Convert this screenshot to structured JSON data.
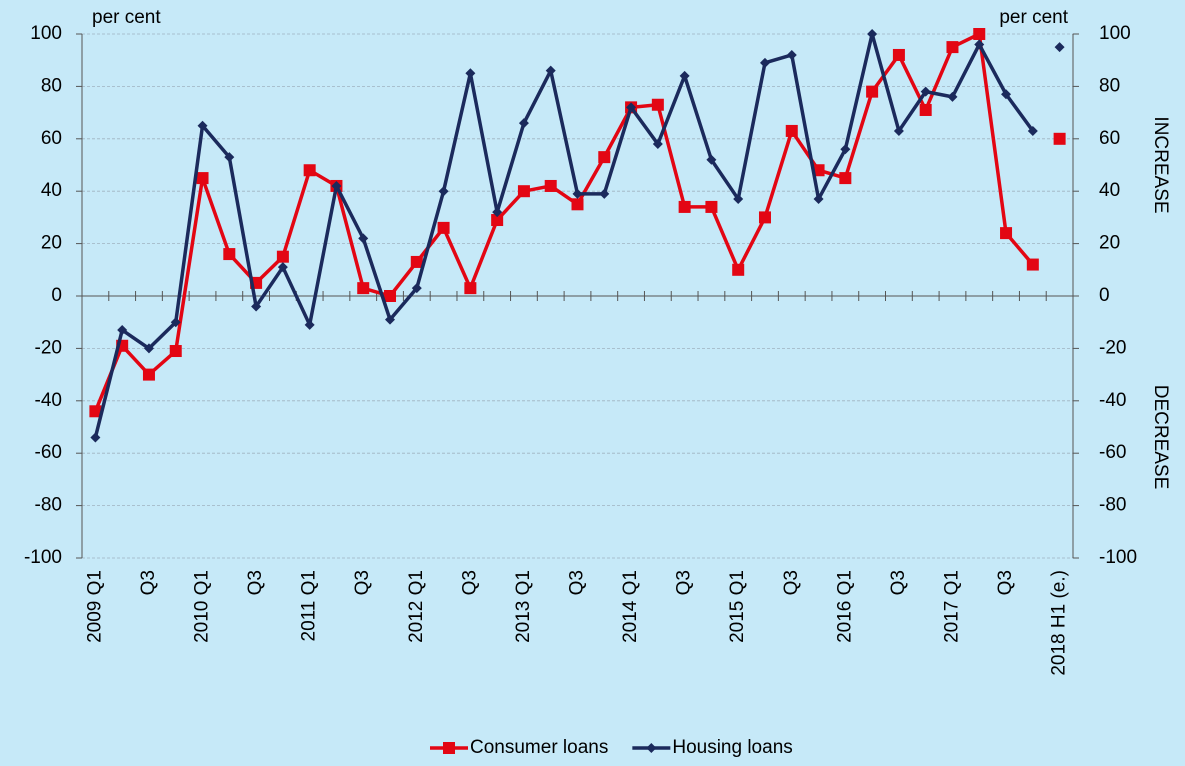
{
  "chart_data": {
    "type": "line",
    "y_unit_label": "per cent",
    "y2_unit_label": "per cent",
    "upper_note": "INCREASE",
    "lower_note": "DECREASE",
    "categories": [
      "2009 Q1",
      null,
      "Q3",
      null,
      "2010 Q1",
      null,
      "Q3",
      null,
      "2011 Q1",
      null,
      "Q3",
      null,
      "2012 Q1",
      null,
      "Q3",
      null,
      "2013 Q1",
      null,
      "Q3",
      null,
      "2014 Q1",
      null,
      "Q3",
      null,
      "2015 Q1",
      null,
      "Q3",
      null,
      "2016 Q1",
      null,
      "Q3",
      null,
      "2017 Q1",
      null,
      "Q3",
      null,
      "2018 H1 (e.)"
    ],
    "series": [
      {
        "name": "Consumer loans",
        "color": "#e30613",
        "marker": "square",
        "values": [
          -44,
          -19,
          -30,
          -21,
          45,
          16,
          5,
          15,
          48,
          42,
          3,
          0,
          13,
          26,
          3,
          29,
          40,
          42,
          35,
          53,
          72,
          73,
          34,
          34,
          10,
          30,
          63,
          48,
          45,
          78,
          92,
          71,
          95,
          100,
          24,
          12,
          60
        ]
      },
      {
        "name": "Housing loans",
        "color": "#1b2a5c",
        "marker": "diamond",
        "values": [
          -54,
          -13,
          -20,
          -10,
          65,
          53,
          -4,
          11,
          -11,
          42,
          22,
          -9,
          3,
          40,
          85,
          32,
          66,
          86,
          39,
          39,
          72,
          58,
          84,
          52,
          37,
          89,
          92,
          37,
          56,
          100,
          63,
          78,
          76,
          96,
          77,
          63,
          95
        ]
      }
    ],
    "ylim": [
      -100,
      100
    ],
    "yticks": [
      -100,
      -80,
      -60,
      -40,
      -20,
      0,
      20,
      40,
      60,
      80,
      100
    ],
    "y2lim": [
      -100,
      100
    ],
    "y2ticks": [
      -100,
      -80,
      -60,
      -40,
      -20,
      0,
      20,
      40,
      60,
      80,
      100
    ],
    "grid": true,
    "legend": "bottom"
  }
}
